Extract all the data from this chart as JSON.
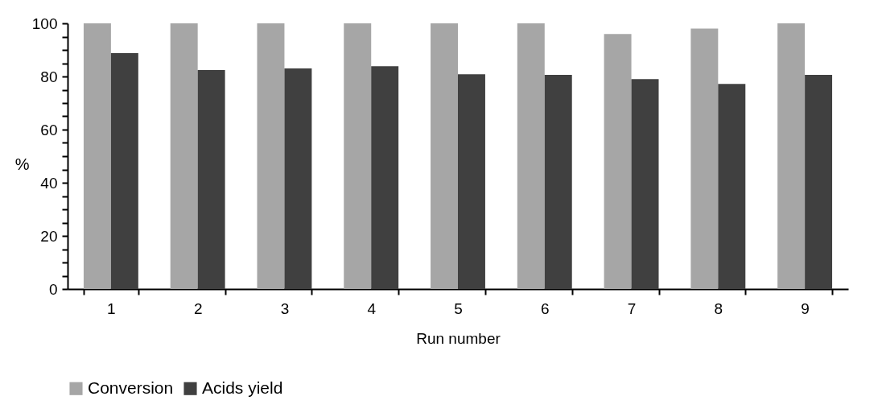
{
  "chart_data": {
    "type": "bar",
    "xlabel": "Run number",
    "ylabel": "%",
    "categories": [
      "1",
      "2",
      "3",
      "4",
      "5",
      "6",
      "7",
      "8",
      "9"
    ],
    "series": [
      {
        "name": "Conversion",
        "color": "#a6a6a6",
        "values": [
          100,
          100,
          100,
          100,
          100,
          100,
          96,
          98,
          100
        ]
      },
      {
        "name": "Acids yield",
        "color": "#404040",
        "values": [
          88.8,
          82.4,
          83,
          83.9,
          80.8,
          80.6,
          79,
          77.2,
          80.6
        ]
      }
    ],
    "ylim": [
      0,
      100
    ],
    "yticks": [
      0,
      {
        "value": 5,
        "label": null
      },
      {
        "value": 10,
        "label": null
      },
      {
        "value": 15,
        "label": null
      },
      20,
      {
        "value": 25,
        "label": null
      },
      {
        "value": 30,
        "label": null
      },
      {
        "value": 35,
        "label": null
      },
      40,
      {
        "value": 45,
        "label": null
      },
      {
        "value": 50,
        "label": null
      },
      {
        "value": 55,
        "label": null
      },
      60,
      {
        "value": 65,
        "label": null
      },
      {
        "value": 70,
        "label": null
      },
      {
        "value": 75,
        "label": null
      },
      80,
      {
        "value": 85,
        "label": null
      },
      {
        "value": 90,
        "label": null
      },
      {
        "value": 95,
        "label": null
      },
      100
    ],
    "grid": false,
    "legend": "bottom"
  }
}
